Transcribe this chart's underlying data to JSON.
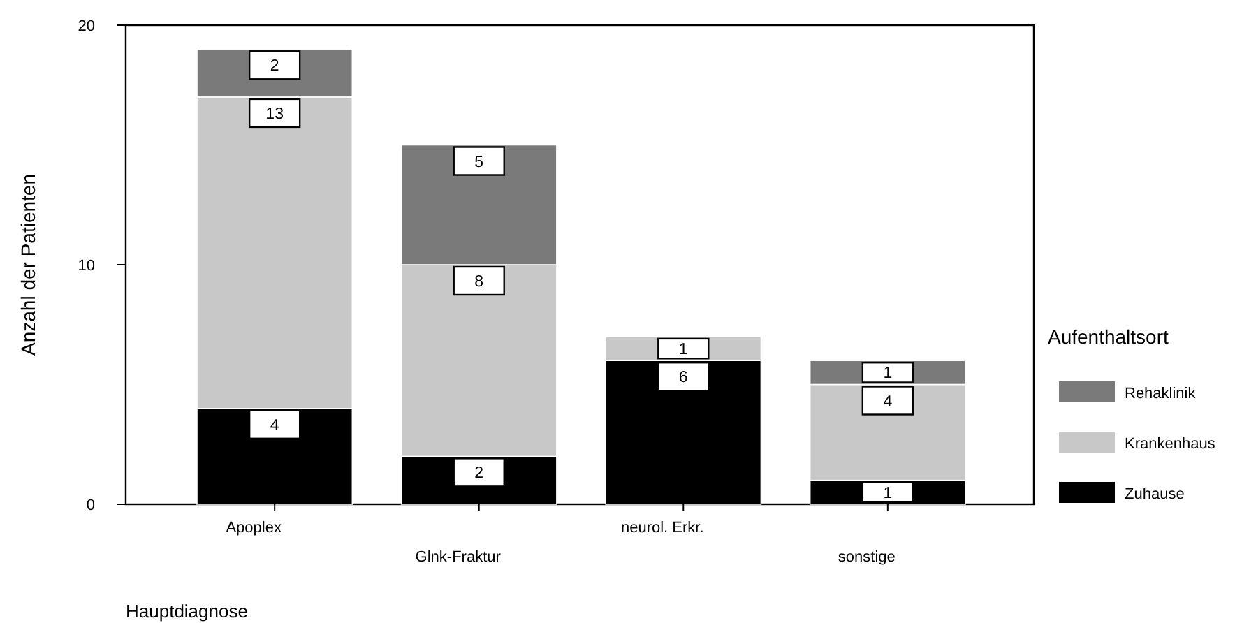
{
  "chart_data": {
    "type": "bar",
    "stacked": true,
    "categories": [
      "Apoplex",
      "Glnk-Fraktur",
      "neurol. Erkr.",
      "sonstige"
    ],
    "series": [
      {
        "name": "Zuhause",
        "color": "#000000",
        "values": [
          4,
          2,
          6,
          1
        ]
      },
      {
        "name": "Krankenhaus",
        "color": "#c8c8c8",
        "values": [
          13,
          8,
          1,
          4
        ]
      },
      {
        "name": "Rehaklinik",
        "color": "#7a7a7a",
        "values": [
          2,
          5,
          null,
          1
        ]
      }
    ],
    "ylim": [
      0,
      20
    ],
    "yticks": [
      0,
      10,
      20
    ],
    "xlabel": "Hauptdiagnose",
    "ylabel": "Anzahl der Patienten",
    "legend_title": "Aufenthaltsort",
    "legend": "right",
    "data_labels": true,
    "grid": false
  }
}
